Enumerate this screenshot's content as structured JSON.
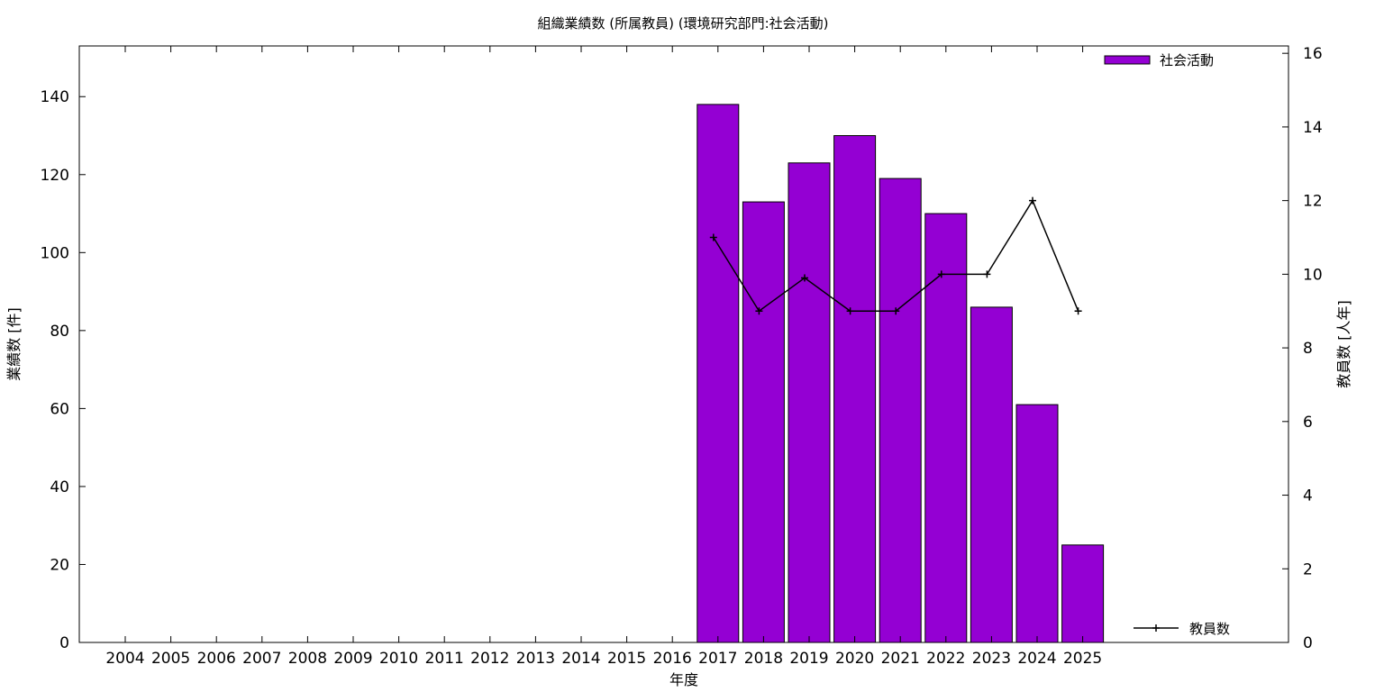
{
  "chart_data": {
    "type": "bar",
    "title": "組織業績数 (所属教員) (環境研究部門:社会活動)",
    "xlabel": "年度",
    "ylabel": "業績数 [件]",
    "y2label": "教員数 [人年]",
    "categories": [
      "2004",
      "2005",
      "2006",
      "2007",
      "2008",
      "2009",
      "2010",
      "2011",
      "2012",
      "2013",
      "2014",
      "2015",
      "2016",
      "2017",
      "2018",
      "2019",
      "2020",
      "2021",
      "2022",
      "2023",
      "2024",
      "2025"
    ],
    "series": [
      {
        "name": "社会活動",
        "type": "bar",
        "axis": "left",
        "color": "#9400d3",
        "values": [
          null,
          null,
          null,
          null,
          null,
          null,
          null,
          null,
          null,
          null,
          null,
          null,
          null,
          138,
          113,
          123,
          130,
          119,
          110,
          86,
          61,
          25
        ]
      },
      {
        "name": "教員数",
        "type": "line",
        "axis": "right",
        "color": "#000000",
        "values": [
          null,
          null,
          null,
          null,
          null,
          null,
          null,
          null,
          null,
          null,
          null,
          null,
          null,
          11,
          9,
          9.9,
          9,
          9,
          10,
          10,
          12,
          9
        ]
      }
    ],
    "ylim": [
      0,
      153
    ],
    "y2lim": [
      0,
      16.2
    ],
    "yticks": [
      "0",
      "20",
      "40",
      "60",
      "80",
      "100",
      "120",
      "140"
    ],
    "y2ticks": [
      "0",
      "2",
      "4",
      "6",
      "8",
      "10",
      "12",
      "14",
      "16"
    ],
    "legend_bar_position": "top-right",
    "legend_line_position": "bottom-right",
    "grid": false
  }
}
